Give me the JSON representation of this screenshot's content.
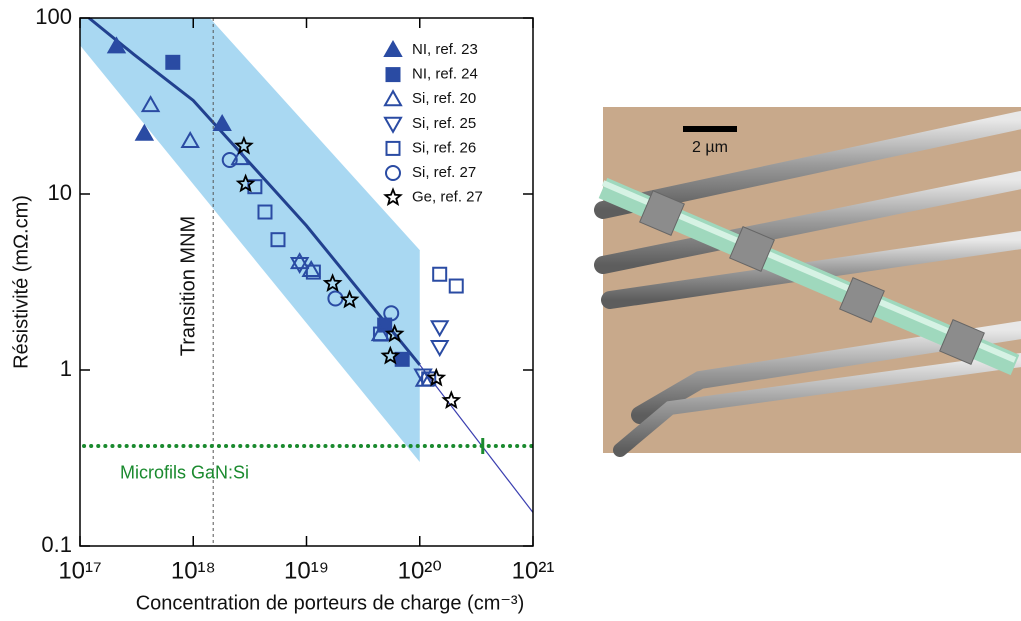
{
  "chart_data": {
    "type": "scatter",
    "x_label": "Concentration de porteurs de charge (cm⁻³)",
    "y_label": "Résistivité (mΩ.cm)",
    "xscale": "log",
    "yscale": "log",
    "xlim": [
      1e+17,
      1e+21
    ],
    "ylim": [
      0.1,
      100
    ],
    "xticks": [
      {
        "value": 1e+17,
        "label": "10¹⁷"
      },
      {
        "value": 1e+18,
        "label": "10¹⁸"
      },
      {
        "value": 1e+19,
        "label": "10¹⁹"
      },
      {
        "value": 1e+20,
        "label": "10²⁰"
      },
      {
        "value": 1e+21,
        "label": "10²¹"
      }
    ],
    "yticks": [
      0.1,
      1,
      10,
      100
    ],
    "legend": "upper right",
    "series": [
      {
        "name": "NI, ref. 23",
        "color": "#2a4ba3",
        "marker": "triangle-up",
        "filled": true,
        "x": [
          2.1e+17,
          3.7e+17,
          1.8e+18
        ],
        "values": [
          69,
          22,
          25
        ]
      },
      {
        "name": "NI, ref. 24",
        "color": "#2a4ba3",
        "marker": "square",
        "filled": true,
        "x": [
          6.6e+17,
          4.9e+19,
          7e+19
        ],
        "values": [
          56,
          1.8,
          1.15
        ]
      },
      {
        "name": "Si, ref. 20",
        "color": "#2a4ba3",
        "marker": "triangle-up",
        "filled": false,
        "x": [
          4.2e+17,
          9.4e+17,
          2.6e+18,
          8.7e+18,
          1.1e+19,
          4.5e+19,
          1.1e+20
        ],
        "values": [
          32,
          20,
          16,
          4.1,
          3.7,
          1.6,
          0.88
        ]
      },
      {
        "name": "Si, ref. 25",
        "color": "#2a4ba3",
        "marker": "triangle-down",
        "filled": false,
        "x": [
          8.7e+18,
          1.5e+20,
          1.5e+20,
          1.07e+20
        ],
        "values": [
          4.0,
          1.75,
          1.35,
          0.93
        ]
      },
      {
        "name": "Si, ref. 26",
        "color": "#2a4ba3",
        "marker": "square",
        "filled": false,
        "x": [
          3.5e+18,
          4.3e+18,
          5.6e+18,
          1.15e+19,
          4.5e+19,
          1.5e+20,
          2.1e+20,
          1.2e+20
        ],
        "values": [
          11,
          7.9,
          5.5,
          3.6,
          1.6,
          3.5,
          3.0,
          0.89
        ]
      },
      {
        "name": "Si, ref. 27",
        "color": "#2a4ba3",
        "marker": "circle",
        "filled": false,
        "x": [
          2.1e+18,
          1.8e+19,
          5.6e+19
        ],
        "values": [
          15.6,
          2.55,
          2.1
        ]
      },
      {
        "name": "Ge, ref. 27",
        "color": "#000000",
        "marker": "star",
        "filled": false,
        "x": [
          2.8e+18,
          2.9e+18,
          1.7e+19,
          2.4e+19,
          6e+19,
          5.5e+19,
          1.4e+20,
          1.9e+20
        ],
        "values": [
          18.7,
          11.4,
          3.1,
          2.5,
          1.6,
          1.2,
          0.9,
          0.67
        ]
      }
    ],
    "fit": {
      "color": "#22418f",
      "x": [
        1.2e+17,
        3e+17,
        1e+18,
        1e+19,
        1e+20
      ],
      "y": [
        100,
        62,
        34,
        6.6,
        1.07
      ]
    },
    "extrapolation": {
      "color": "#3b3fb0",
      "x": [
        1e+20,
        1e+21
      ],
      "y": [
        1.07,
        0.155
      ]
    },
    "band": {
      "color": "#a9d8f2",
      "x": [
        1e+17,
        1.4e+18,
        1e+20,
        1e+20,
        1e+17
      ],
      "y": [
        100,
        100,
        4.8,
        0.3,
        70
      ]
    },
    "transition_x": 1.5e+18,
    "transition_label": "Transition MNM",
    "gan_level": 0.37,
    "gan_point_x": 3.6e+20,
    "gan_color": "#1a8a2e",
    "gan_label": "Microfils GaN:Si"
  },
  "image": {
    "scale_label": "2 µm"
  }
}
